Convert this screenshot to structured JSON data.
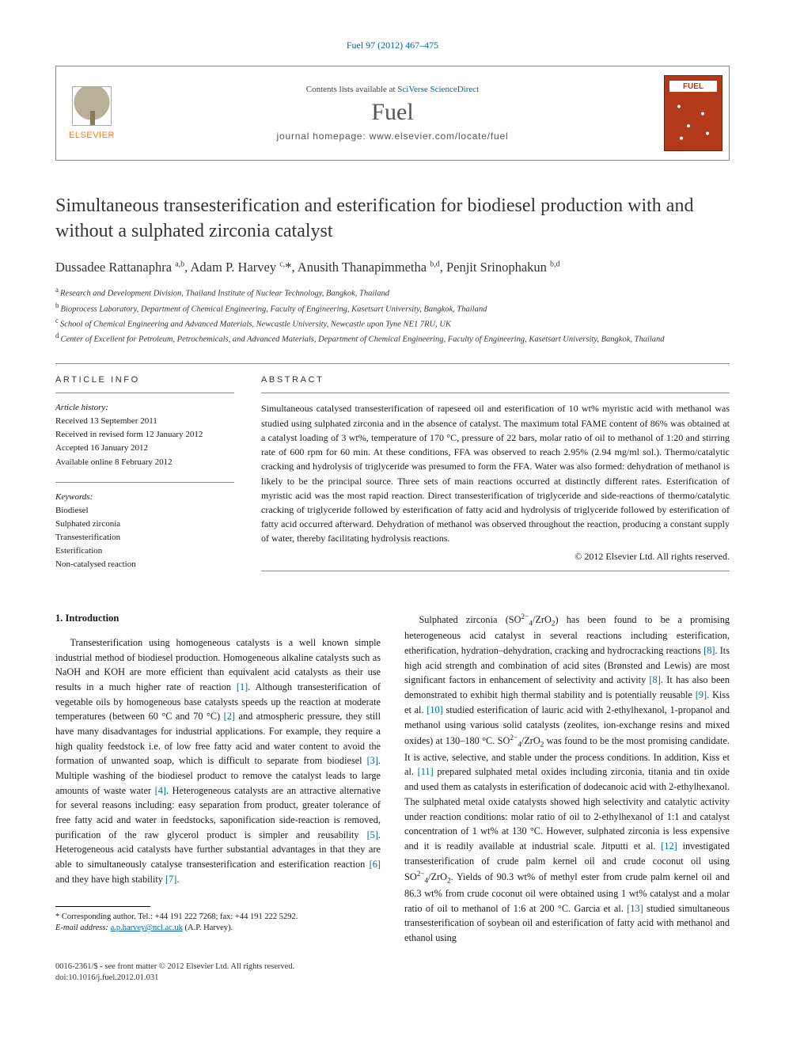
{
  "header": {
    "citation": "Fuel 97 (2012) 467–475",
    "contents_prefix": "Contents lists available at ",
    "contents_link": "SciVerse ScienceDirect",
    "journal": "Fuel",
    "homepage_label": "journal homepage: www.elsevier.com/locate/fuel",
    "publisher_logo_text": "ELSEVIER",
    "cover_label": "FUEL"
  },
  "article": {
    "title": "Simultaneous transesterification and esterification for biodiesel production with and without a sulphated zirconia catalyst",
    "authors_html": "Dussadee Rattanaphra <sup>a,b</sup>, Adam P. Harvey <sup>c,</sup><span class='corr-star'>*</span>, Anusith Thanapimmetha <sup>b,d</sup>, Penjit Srinophakun <sup>b,d</sup>",
    "affiliations": [
      {
        "key": "a",
        "text": "Research and Development Division, Thailand Institute of Nuclear Technology, Bangkok, Thailand"
      },
      {
        "key": "b",
        "text": "Bioprocess Laboratory, Department of Chemical Engineering, Faculty of Engineering, Kasetsart University, Bangkok, Thailand"
      },
      {
        "key": "c",
        "text": "School of Chemical Engineering and Advanced Materials, Newcastle University, Newcastle upon Tyne NE1 7RU, UK"
      },
      {
        "key": "d",
        "text": "Center of Excellent for Petroleum, Petrochemicals, and Advanced Materials, Department of Chemical Engineering, Faculty of Engineering, Kasetsart University, Bangkok, Thailand"
      }
    ]
  },
  "info": {
    "heading": "ARTICLE INFO",
    "history_label": "Article history:",
    "history": [
      "Received 13 September 2011",
      "Received in revised form 12 January 2012",
      "Accepted 16 January 2012",
      "Available online 8 February 2012"
    ],
    "keywords_label": "Keywords:",
    "keywords": [
      "Biodiesel",
      "Sulphated zirconia",
      "Transesterification",
      "Esterification",
      "Non-catalysed reaction"
    ]
  },
  "abstract": {
    "heading": "ABSTRACT",
    "text": "Simultaneous catalysed transesterification of rapeseed oil and esterification of 10 wt% myristic acid with methanol was studied using sulphated zirconia and in the absence of catalyst. The maximum total FAME content of 86% was obtained at a catalyst loading of 3 wt%, temperature of 170 °C, pressure of 22 bars, molar ratio of oil to methanol of 1:20 and stirring rate of 600 rpm for 60 min. At these conditions, FFA was observed to reach 2.95% (2.94 mg/ml sol.). Thermo/catalytic cracking and hydrolysis of triglyceride was presumed to form the FFA. Water was also formed: dehydration of methanol is likely to be the principal source. Three sets of main reactions occurred at distinctly different rates. Esterification of myristic acid was the most rapid reaction. Direct transesterification of triglyceride and side-reactions of thermo/catalytic cracking of triglyceride followed by esterification of fatty acid and hydrolysis of triglyceride followed by esterification of fatty acid occurred afterward. Dehydration of methanol was observed throughout the reaction, producing a constant supply of water, thereby facilitating hydrolysis reactions.",
    "copyright": "© 2012 Elsevier Ltd. All rights reserved."
  },
  "body": {
    "section_number": "1.",
    "section_title": "Introduction",
    "col1_html": "Transesterification using homogeneous catalysts is a well known simple industrial method of biodiesel production. Homogeneous alkaline catalysts such as NaOH and KOH are more efficient than equivalent acid catalysts as their use results in a much higher rate of reaction <span class='ref-link'>[1]</span>. Although transesterification of vegetable oils by homogeneous base catalysts speeds up the reaction at moderate temperatures (between 60 °C and 70 °C) <span class='ref-link'>[2]</span> and atmospheric pressure, they still have many disadvantages for industrial applications. For example, they require a high quality feedstock i.e. of low free fatty acid and water content to avoid the formation of unwanted soap, which is difficult to separate from biodiesel <span class='ref-link'>[3]</span>. Multiple washing of the biodiesel product to remove the catalyst leads to large amounts of waste water <span class='ref-link'>[4]</span>. Heterogeneous catalysts are an attractive alternative for several reasons including: easy separation from product, greater tolerance of free fatty acid and water in feedstocks, saponification side-reaction is removed, purification of the raw glycerol product is simpler and reusability <span class='ref-link'>[5]</span>. Heterogeneous acid catalysts have further substantial advantages in that they are able to simultaneously catalyse transesterification and esterification reaction <span class='ref-link'>[6]</span> and they have high stability <span class='ref-link'>[7]</span>.",
    "col2_html": "Sulphated zirconia (SO<span class='su'>2−</span><span class='sub'>4</span>/ZrO<span class='sub'>2</span>) has been found to be a promising heterogeneous acid catalyst in several reactions including esterification, etherification, hydration–dehydration, cracking and hydrocracking reactions <span class='ref-link'>[8]</span>. Its high acid strength and combination of acid sites (Brønsted and Lewis) are most significant factors in enhancement of selectivity and activity <span class='ref-link'>[8]</span>. It has also been demonstrated to exhibit high thermal stability and is potentially reusable <span class='ref-link'>[9]</span>. Kiss et al. <span class='ref-link'>[10]</span> studied esterification of lauric acid with 2-ethylhexanol, 1-propanol and methanol using various solid catalysts (zeolites, ion-exchange resins and mixed oxides) at 130–180 °C. SO<span class='su'>2−</span><span class='sub'>4</span>/ZrO<span class='sub'>2</span> was found to be the most promising candidate. It is active, selective, and stable under the process conditions. In addition, Kiss et al. <span class='ref-link'>[11]</span> prepared sulphated metal oxides including zirconia, titania and tin oxide and used them as catalysts in esterification of dodecanoic acid with 2-ethylhexanol. The sulphated metal oxide catalysts showed high selectivity and catalytic activity under reaction conditions: molar ratio of oil to 2-ethylhexanol of 1:1 and catalyst concentration of 1 wt% at 130 °C. However, sulphated zirconia is less expensive and it is readily available at industrial scale. Jitputti et al. <span class='ref-link'>[12]</span> investigated transesterification of crude palm kernel oil and crude coconut oil using SO<span class='su'>2−</span><span class='sub'>4</span>/ZrO<span class='sub'>2</span>. Yields of 90.3 wt% of methyl ester from crude palm kernel oil and 86.3 wt% from crude coconut oil were obtained using 1 wt% catalyst and a molar ratio of oil to methanol of 1:6 at 200 °C. Garcia et al. <span class='ref-link'>[13]</span> studied simultaneous transesterification of soybean oil and esterification of fatty acid with methanol and ethanol using"
  },
  "footnote": {
    "corr_label": "* Corresponding author. Tel.: +44 191 222 7268; fax: +44 191 222 5292.",
    "email_label": "E-mail address:",
    "email": "a.p.harvey@ncl.ac.uk",
    "email_person": "(A.P. Harvey)."
  },
  "footer": {
    "issn_line": "0016-2361/$ - see front matter © 2012 Elsevier Ltd. All rights reserved.",
    "doi_line": "doi:10.1016/j.fuel.2012.01.031"
  },
  "colors": {
    "link": "#0066aa",
    "elsevier_orange": "#ff7a1a",
    "cover_red": "#b23a1a",
    "rule_gray": "#8a8a8a",
    "text": "#1a1a1a"
  }
}
